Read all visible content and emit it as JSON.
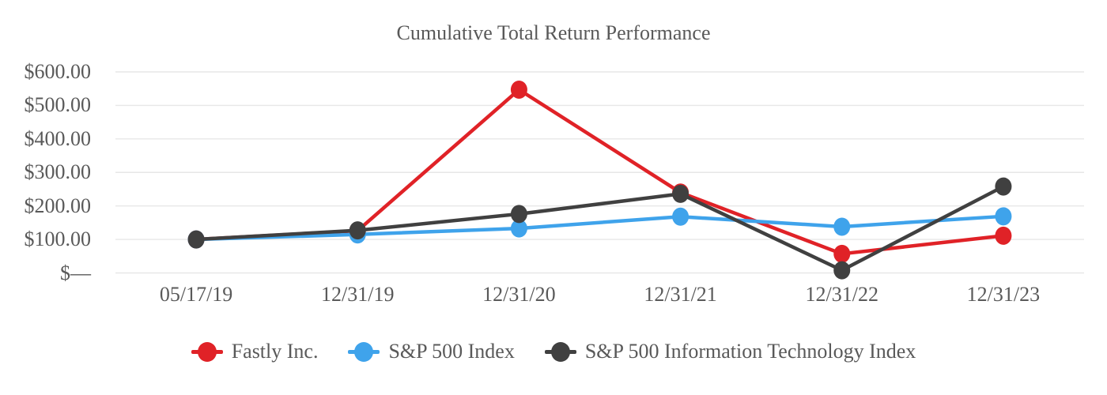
{
  "chart_data": {
    "type": "line",
    "title": "Cumulative Total Return Performance",
    "categories": [
      "05/17/19",
      "12/31/19",
      "12/31/20",
      "12/31/21",
      "12/31/22",
      "12/31/23"
    ],
    "series": [
      {
        "name": "Fastly Inc.",
        "color": "#E02227",
        "values": [
          100,
          126,
          547,
          240,
          57,
          111
        ]
      },
      {
        "name": "S&P 500 Index",
        "color": "#3FA3EB",
        "values": [
          100,
          115,
          133,
          168,
          138,
          169
        ]
      },
      {
        "name": "S&P 500 Information Technology Index",
        "color": "#404040",
        "values": [
          100,
          127,
          176,
          236,
          8,
          258
        ]
      }
    ],
    "y_ticks": [
      {
        "label": "$600.00",
        "value": 600
      },
      {
        "label": "$500.00",
        "value": 500
      },
      {
        "label": "$400.00",
        "value": 400
      },
      {
        "label": "$300.00",
        "value": 300
      },
      {
        "label": "$200.00",
        "value": 200
      },
      {
        "label": "$100.00",
        "value": 100
      },
      {
        "label": "$—",
        "value": 0
      }
    ],
    "ylim": [
      0,
      600
    ],
    "grid": true,
    "gridline_color": "#E7E7E7",
    "text_color": "#595959",
    "legend_position": "bottom"
  }
}
